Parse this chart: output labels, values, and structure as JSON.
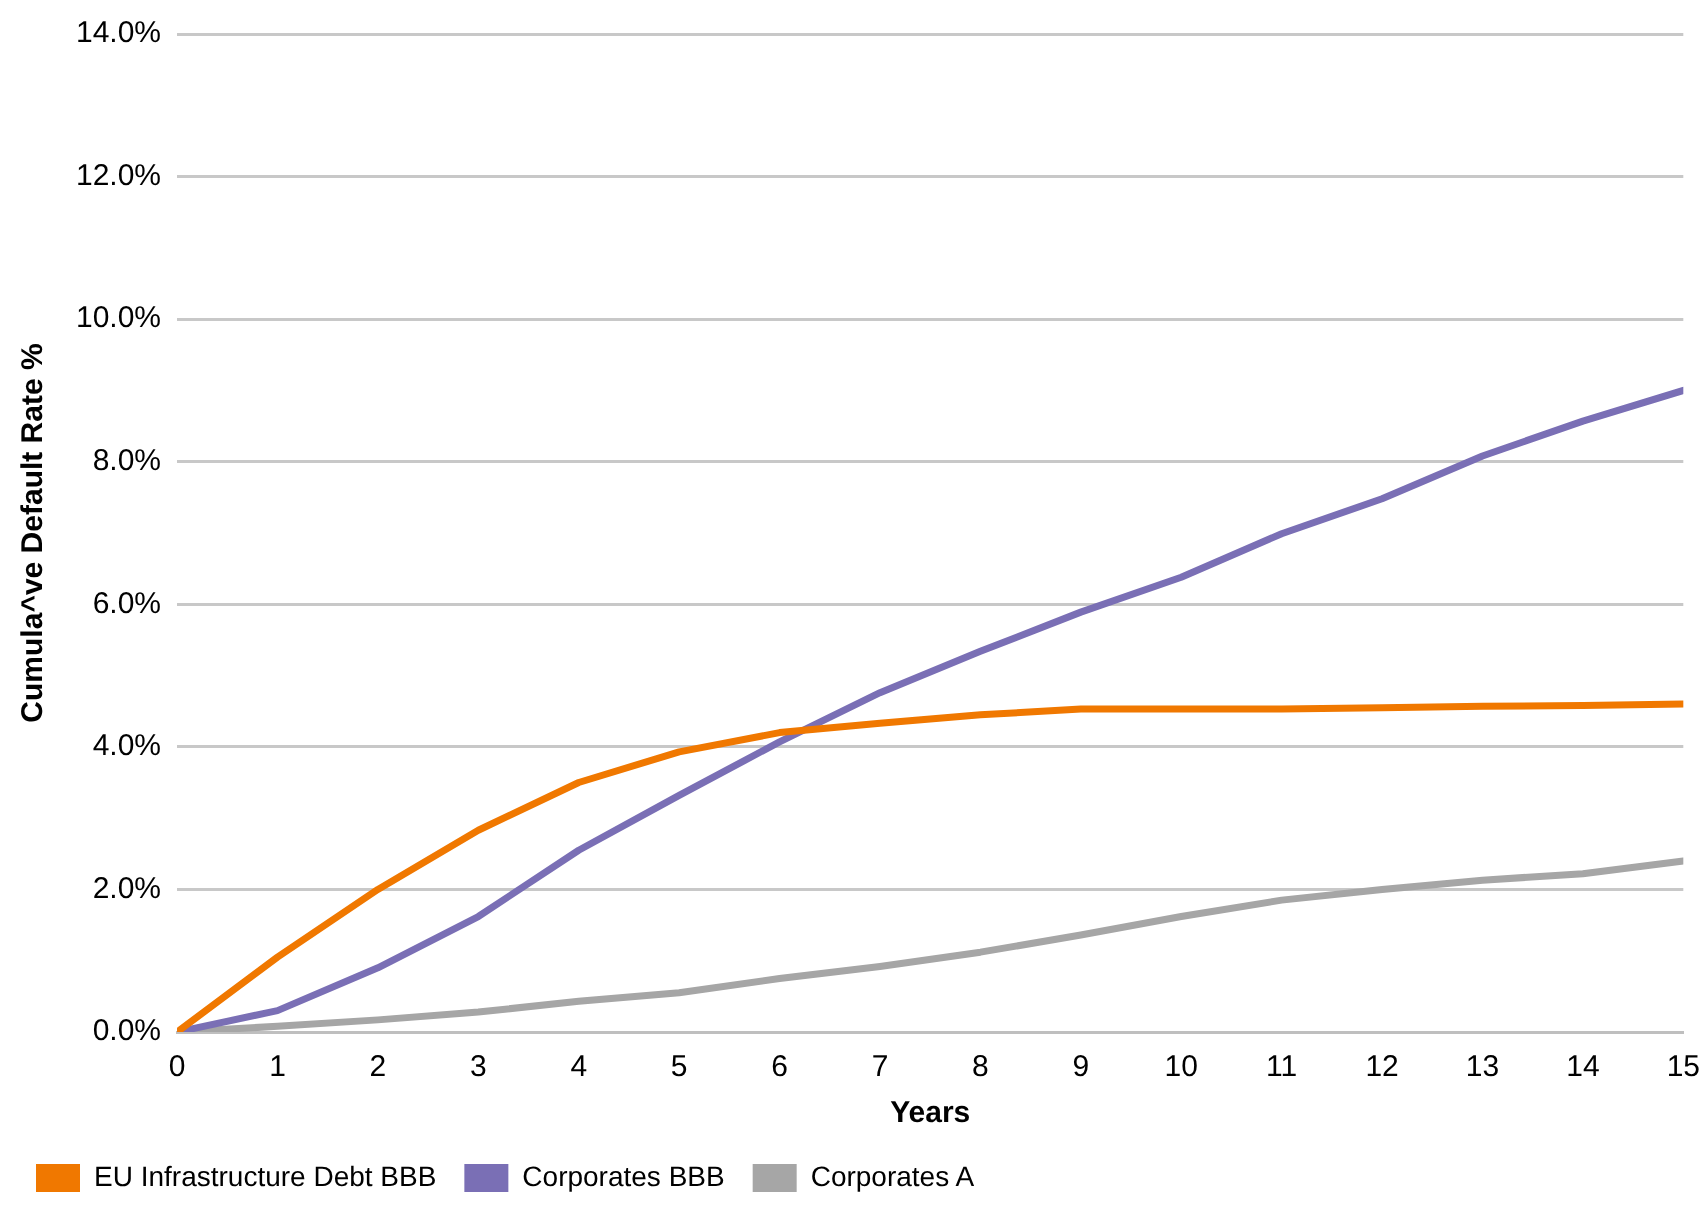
{
  "chart_data": {
    "type": "line",
    "xlabel": "Years",
    "ylabel": "Cumula^ve Default Rate %",
    "x": [
      0,
      1,
      2,
      3,
      4,
      5,
      6,
      7,
      8,
      9,
      10,
      11,
      12,
      13,
      14,
      15
    ],
    "series": [
      {
        "name": "EU Infrastructure Debt BBB",
        "color": "#f07800",
        "values": [
          0,
          1.05,
          2.0,
          2.83,
          3.5,
          3.93,
          4.2,
          4.33,
          4.45,
          4.53,
          4.53,
          4.53,
          4.55,
          4.57,
          4.58,
          4.6
        ]
      },
      {
        "name": "Corporates BBB",
        "color": "#7a6fb5",
        "values": [
          0,
          0.3,
          0.9,
          1.62,
          2.55,
          3.32,
          4.07,
          4.76,
          5.34,
          5.89,
          6.38,
          6.99,
          7.48,
          8.08,
          8.57,
          9.0
        ]
      },
      {
        "name": "Corporates A",
        "color": "#a6a6a6",
        "values": [
          0,
          0.08,
          0.17,
          0.28,
          0.43,
          0.55,
          0.75,
          0.92,
          1.12,
          1.36,
          1.62,
          1.85,
          2.0,
          2.13,
          2.22,
          2.4
        ]
      }
    ],
    "xlim": [
      0,
      15
    ],
    "xticks": [
      0,
      1,
      2,
      3,
      4,
      5,
      6,
      7,
      8,
      9,
      10,
      11,
      12,
      13,
      14,
      15
    ],
    "ylim": [
      0,
      14
    ],
    "yticks": [
      {
        "value": 0,
        "label": "0.0%"
      },
      {
        "value": 2,
        "label": "2.0%"
      },
      {
        "value": 4,
        "label": "4.0%"
      },
      {
        "value": 6,
        "label": "6.0%"
      },
      {
        "value": 8,
        "label": "8.0%"
      },
      {
        "value": 10,
        "label": "10.0%"
      },
      {
        "value": 12,
        "label": "12.0%"
      },
      {
        "value": 14,
        "label": "14.0%"
      }
    ],
    "grid": "y",
    "legend": "bottom left",
    "marker": "none",
    "line_style": "solid"
  }
}
